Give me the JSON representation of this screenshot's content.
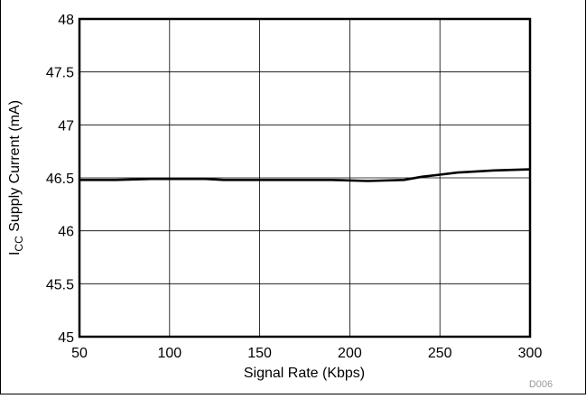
{
  "chart_data": {
    "type": "line",
    "xlabel": "Signal Rate (Kbps)",
    "ylabel_main": "I",
    "ylabel_sub": "CC",
    "ylabel_rest": " Supply Current (mA)",
    "xlim": [
      50,
      300
    ],
    "ylim": [
      45,
      48
    ],
    "x_ticks": [
      "50",
      "100",
      "150",
      "200",
      "250",
      "300"
    ],
    "y_ticks": [
      "45",
      "45.5",
      "46",
      "46.5",
      "47",
      "47.5",
      "48"
    ],
    "grid": true,
    "series": [
      {
        "x": [
          50,
          70,
          90,
          110,
          120,
          130,
          150,
          170,
          190,
          210,
          230,
          240,
          250,
          260,
          280,
          300
        ],
        "y": [
          46.48,
          46.48,
          46.49,
          46.49,
          46.49,
          46.48,
          46.48,
          46.48,
          46.48,
          46.47,
          46.48,
          46.51,
          46.53,
          46.55,
          46.57,
          46.58
        ]
      }
    ],
    "watermark": "D006"
  }
}
